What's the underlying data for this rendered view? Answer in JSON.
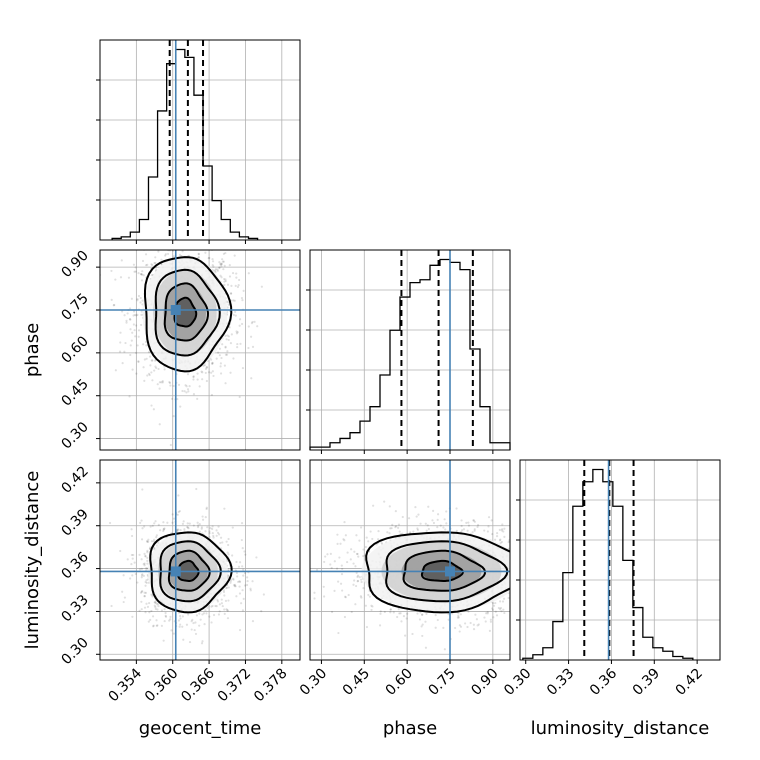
{
  "chart_data": {
    "type": "corner",
    "parameters": [
      {
        "name": "geocent_time",
        "xlabel": "geocent_time",
        "ylabel": "",
        "lim": [
          0.348,
          0.381
        ],
        "ticks": [
          "0.354",
          "0.360",
          "0.366",
          "0.372",
          "0.378"
        ],
        "truth": 0.3605,
        "quantiles": [
          0.3595,
          0.3625,
          0.365
        ],
        "hist": {
          "edges_start": 0.35,
          "bin_width": 0.0015,
          "values": [
            1,
            2,
            5,
            13,
            40,
            82,
            112,
            121,
            116,
            92,
            47,
            25,
            13,
            5,
            2,
            1
          ]
        }
      },
      {
        "name": "phase",
        "xlabel": "phase",
        "ylabel": "phase",
        "lim": [
          0.26,
          0.96
        ],
        "ticks": [
          "0.30",
          "0.45",
          "0.60",
          "0.75",
          "0.90"
        ],
        "truth": 0.75,
        "quantiles": [
          0.58,
          0.71,
          0.83
        ],
        "hist": {
          "edges_start": 0.26,
          "bin_width": 0.035,
          "values": [
            2,
            2,
            5,
            8,
            12,
            20,
            30,
            52,
            83,
            106,
            116,
            118,
            128,
            132,
            130,
            125,
            70,
            30,
            5,
            5
          ]
        }
      },
      {
        "name": "luminosity_distance",
        "xlabel": "luminosity_distance",
        "ylabel": "luminosity_distance",
        "lim": [
          0.296,
          0.436
        ],
        "ticks": [
          "0.30",
          "0.33",
          "0.36",
          "0.39",
          "0.42"
        ],
        "truth": 0.358,
        "quantiles": [
          0.341,
          0.3585,
          0.3755
        ],
        "hist": {
          "edges_start": 0.298,
          "bin_width": 0.007,
          "values": [
            1,
            3,
            7,
            22,
            50,
            88,
            102,
            109,
            102,
            88,
            57,
            30,
            13,
            7,
            5,
            2,
            1
          ]
        }
      }
    ],
    "pairs": [
      {
        "x": "geocent_time",
        "y": "phase",
        "center": [
          0.362,
          0.74
        ],
        "spread": [
          0.0035,
          0.1
        ]
      },
      {
        "x": "geocent_time",
        "y": "luminosity_distance",
        "center": [
          0.3625,
          0.358
        ],
        "spread": [
          0.0033,
          0.014
        ]
      },
      {
        "x": "phase",
        "y": "luminosity_distance",
        "center": [
          0.72,
          0.358
        ],
        "spread": [
          0.14,
          0.014
        ]
      }
    ],
    "grid": true,
    "contour_levels": 4,
    "truth_color": "#4682b4"
  }
}
